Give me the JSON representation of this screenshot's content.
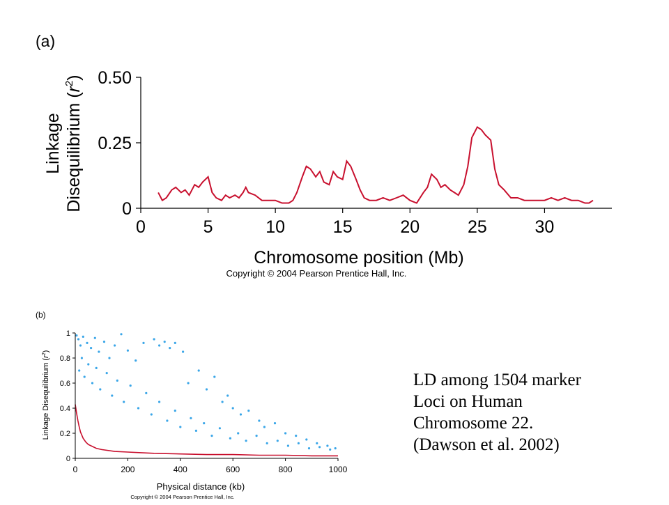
{
  "caption": {
    "lines": [
      "LD among 1504 marker",
      "Loci on Human",
      "Chromosome  22.",
      "(Dawson et al. 2002)"
    ]
  },
  "chart_data": [
    {
      "panel_label": "(a)",
      "type": "line",
      "xlabel": "Chromosome position (Mb)",
      "ylabel_parts": [
        "Linkage",
        "Disequilibrium (",
        "r",
        "2",
        ")"
      ],
      "copyright": "Copyright © 2004 Pearson Prentice Hall, Inc.",
      "xlim": [
        0,
        35
      ],
      "ylim": [
        0,
        0.5
      ],
      "x_ticks": [
        0,
        5,
        10,
        15,
        20,
        25,
        30
      ],
      "x_tick_labels": [
        "0",
        "5",
        "10",
        "15",
        "20",
        "25",
        "30"
      ],
      "y_ticks": [
        0,
        0.25,
        0.5
      ],
      "y_tick_labels": [
        "0",
        "0.25",
        "0.50"
      ],
      "grid": false,
      "line_color": "#c8102e",
      "series": [
        {
          "x": [
            1.3,
            1.6,
            1.9,
            2.3,
            2.6,
            3.0,
            3.3,
            3.6,
            4.0,
            4.3,
            4.6,
            5.0,
            5.3,
            5.6,
            6.0,
            6.3,
            6.6,
            7.0,
            7.3,
            7.6,
            7.8,
            8.0,
            8.5,
            9.0,
            9.5,
            10.0,
            10.5,
            11.0,
            11.3,
            11.6,
            12.0,
            12.3,
            12.6,
            13.0,
            13.3,
            13.6,
            14.0,
            14.3,
            14.6,
            15.0,
            15.3,
            15.6,
            16.0,
            16.3,
            16.6,
            17.0,
            17.5,
            18.0,
            18.5,
            19.0,
            19.5,
            20.0,
            20.5,
            21.0,
            21.3,
            21.6,
            22.0,
            22.3,
            22.6,
            23.0,
            23.3,
            23.6,
            24.0,
            24.3,
            24.6,
            25.0,
            25.3,
            25.6,
            26.0,
            26.3,
            26.6,
            27.0,
            27.5,
            28.0,
            28.5,
            29.0,
            29.5,
            30.0,
            30.5,
            31.0,
            31.5,
            32.0,
            32.5,
            33.0,
            33.3,
            33.6
          ],
          "y": [
            0.06,
            0.03,
            0.04,
            0.07,
            0.08,
            0.06,
            0.07,
            0.05,
            0.09,
            0.08,
            0.1,
            0.12,
            0.06,
            0.04,
            0.03,
            0.05,
            0.04,
            0.05,
            0.04,
            0.06,
            0.08,
            0.06,
            0.05,
            0.03,
            0.03,
            0.03,
            0.02,
            0.02,
            0.03,
            0.06,
            0.12,
            0.16,
            0.15,
            0.12,
            0.14,
            0.1,
            0.09,
            0.14,
            0.12,
            0.11,
            0.18,
            0.16,
            0.11,
            0.07,
            0.04,
            0.03,
            0.03,
            0.04,
            0.03,
            0.04,
            0.05,
            0.03,
            0.02,
            0.06,
            0.08,
            0.13,
            0.11,
            0.08,
            0.09,
            0.07,
            0.06,
            0.05,
            0.09,
            0.16,
            0.27,
            0.31,
            0.3,
            0.28,
            0.26,
            0.15,
            0.09,
            0.07,
            0.04,
            0.04,
            0.03,
            0.03,
            0.03,
            0.03,
            0.04,
            0.03,
            0.04,
            0.03,
            0.03,
            0.02,
            0.02,
            0.03
          ]
        }
      ]
    },
    {
      "panel_label": "(b)",
      "type": "scatter",
      "xlabel": "Physical distance (kb)",
      "ylabel_parts": [
        "Linkage Disequilibrium (",
        "r",
        "2",
        ")"
      ],
      "copyright": "Copyright © 2004 Pearson Prentice Hall, Inc.",
      "xlim": [
        0,
        1000
      ],
      "ylim": [
        0,
        1
      ],
      "x_ticks": [
        0,
        200,
        400,
        600,
        800,
        1000
      ],
      "x_tick_labels": [
        "0",
        "200",
        "400",
        "600",
        "800",
        "1000"
      ],
      "y_ticks": [
        0,
        0.2,
        0.4,
        0.6,
        0.8,
        1
      ],
      "y_tick_labels": [
        "0",
        "0.2",
        "0.4",
        "0.6",
        "0.8",
        "1"
      ],
      "grid": false,
      "point_color": "#3aa6e8",
      "trend_color": "#c8102e",
      "trend": {
        "x": [
          0,
          5,
          10,
          15,
          20,
          30,
          40,
          50,
          60,
          80,
          100,
          150,
          200,
          250,
          300,
          400,
          500,
          600,
          700,
          800,
          900,
          1000
        ],
        "y": [
          0.43,
          0.36,
          0.3,
          0.25,
          0.21,
          0.16,
          0.13,
          0.11,
          0.1,
          0.08,
          0.07,
          0.055,
          0.05,
          0.045,
          0.04,
          0.035,
          0.03,
          0.03,
          0.025,
          0.025,
          0.02,
          0.02
        ]
      },
      "scatter_points": [
        [
          5,
          0.98
        ],
        [
          12,
          0.95
        ],
        [
          20,
          0.9
        ],
        [
          30,
          0.97
        ],
        [
          45,
          0.92
        ],
        [
          60,
          0.88
        ],
        [
          75,
          0.96
        ],
        [
          90,
          0.85
        ],
        [
          110,
          0.93
        ],
        [
          130,
          0.8
        ],
        [
          150,
          0.9
        ],
        [
          175,
          0.99
        ],
        [
          200,
          0.86
        ],
        [
          230,
          0.78
        ],
        [
          260,
          0.92
        ],
        [
          300,
          0.95
        ],
        [
          320,
          0.9
        ],
        [
          340,
          0.93
        ],
        [
          360,
          0.88
        ],
        [
          380,
          0.92
        ],
        [
          410,
          0.85
        ],
        [
          430,
          0.6
        ],
        [
          470,
          0.7
        ],
        [
          500,
          0.55
        ],
        [
          530,
          0.65
        ],
        [
          560,
          0.45
        ],
        [
          580,
          0.5
        ],
        [
          600,
          0.4
        ],
        [
          630,
          0.35
        ],
        [
          660,
          0.38
        ],
        [
          700,
          0.3
        ],
        [
          720,
          0.25
        ],
        [
          760,
          0.28
        ],
        [
          800,
          0.2
        ],
        [
          840,
          0.18
        ],
        [
          880,
          0.15
        ],
        [
          920,
          0.12
        ],
        [
          960,
          0.1
        ],
        [
          990,
          0.08
        ],
        [
          15,
          0.7
        ],
        [
          25,
          0.8
        ],
        [
          35,
          0.65
        ],
        [
          50,
          0.75
        ],
        [
          65,
          0.6
        ],
        [
          80,
          0.72
        ],
        [
          95,
          0.55
        ],
        [
          120,
          0.68
        ],
        [
          140,
          0.5
        ],
        [
          160,
          0.62
        ],
        [
          185,
          0.45
        ],
        [
          210,
          0.58
        ],
        [
          240,
          0.4
        ],
        [
          270,
          0.52
        ],
        [
          290,
          0.35
        ],
        [
          320,
          0.45
        ],
        [
          350,
          0.3
        ],
        [
          380,
          0.38
        ],
        [
          400,
          0.25
        ],
        [
          440,
          0.32
        ],
        [
          460,
          0.22
        ],
        [
          490,
          0.28
        ],
        [
          520,
          0.18
        ],
        [
          550,
          0.24
        ],
        [
          590,
          0.16
        ],
        [
          620,
          0.2
        ],
        [
          650,
          0.14
        ],
        [
          690,
          0.18
        ],
        [
          730,
          0.12
        ],
        [
          770,
          0.14
        ],
        [
          810,
          0.1
        ],
        [
          850,
          0.12
        ],
        [
          890,
          0.08
        ],
        [
          930,
          0.09
        ],
        [
          970,
          0.07
        ]
      ]
    }
  ]
}
